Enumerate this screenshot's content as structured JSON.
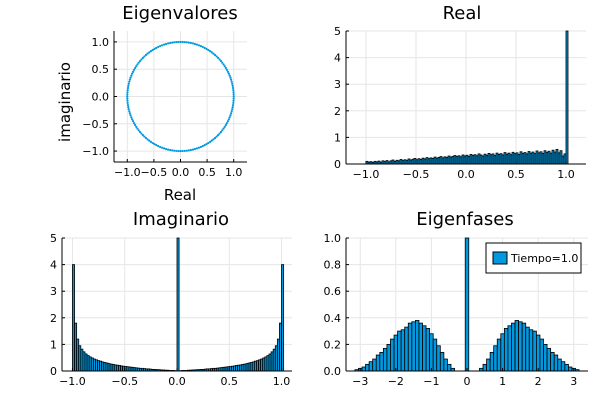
{
  "figure": {
    "background": "#ffffff"
  },
  "colors": {
    "fill": "#0099e0",
    "stroke": "#000000",
    "grid": "#e6e6e6"
  },
  "chart_data": [
    {
      "id": "eig",
      "type": "scatter",
      "title": "Eigenvalores",
      "xlabel": "Real",
      "ylabel": "imaginario",
      "xlim": [
        -1.25,
        1.25
      ],
      "ylim": [
        -1.2,
        1.2
      ],
      "xticks": [
        -1.0,
        -0.5,
        0.0,
        0.5,
        1.0
      ],
      "xtick_labels": [
        "−1.0",
        "−0.5",
        "0.0",
        "0.5",
        "1.0"
      ],
      "yticks": [
        -1.0,
        -0.5,
        0.0,
        0.5,
        1.0
      ],
      "ytick_labels": [
        "−1.0",
        "−0.5",
        "0.0",
        "0.5",
        "1.0"
      ],
      "grid": true,
      "legend": "none",
      "shape": "unit circle",
      "radius": 1.0,
      "n_points": 160
    },
    {
      "id": "real",
      "type": "bar",
      "title": "Real",
      "xlabel": "",
      "ylabel": "",
      "xlim": [
        -1.2,
        1.2
      ],
      "ylim": [
        0,
        5
      ],
      "xticks": [
        -1.0,
        -0.5,
        0.0,
        0.5,
        1.0
      ],
      "xtick_labels": [
        "−1.0",
        "−0.5",
        "0.0",
        "0.5",
        "1.0"
      ],
      "yticks": [
        0,
        1,
        2,
        3,
        4,
        5
      ],
      "ytick_labels": [
        "0",
        "1",
        "2",
        "3",
        "4",
        "5"
      ],
      "grid": true,
      "legend": "none",
      "bin_start": -1.0,
      "bin_width": 0.02,
      "values": [
        0.1,
        0.07,
        0.09,
        0.06,
        0.1,
        0.08,
        0.11,
        0.07,
        0.12,
        0.09,
        0.13,
        0.08,
        0.12,
        0.15,
        0.1,
        0.14,
        0.12,
        0.17,
        0.13,
        0.16,
        0.14,
        0.19,
        0.15,
        0.18,
        0.21,
        0.16,
        0.2,
        0.17,
        0.22,
        0.19,
        0.24,
        0.2,
        0.23,
        0.21,
        0.26,
        0.22,
        0.25,
        0.28,
        0.23,
        0.27,
        0.25,
        0.3,
        0.26,
        0.29,
        0.32,
        0.28,
        0.31,
        0.27,
        0.34,
        0.3,
        0.33,
        0.29,
        0.36,
        0.32,
        0.35,
        0.31,
        0.38,
        0.34,
        0.3,
        0.37,
        0.33,
        0.4,
        0.35,
        0.38,
        0.32,
        0.41,
        0.36,
        0.39,
        0.34,
        0.43,
        0.37,
        0.41,
        0.35,
        0.44,
        0.39,
        0.42,
        0.36,
        0.46,
        0.4,
        0.43,
        0.38,
        0.47,
        0.41,
        0.45,
        0.39,
        0.49,
        0.42,
        0.46,
        0.4,
        0.5,
        0.44,
        0.48,
        0.41,
        0.52,
        0.45,
        0.55,
        0.42,
        0.5,
        0.3,
        0.38,
        5.0
      ]
    },
    {
      "id": "imag",
      "type": "bar",
      "title": "Imaginario",
      "xlabel": "",
      "ylabel": "",
      "xlim": [
        -1.1,
        1.1
      ],
      "ylim": [
        0,
        5
      ],
      "xticks": [
        -1.0,
        -0.5,
        0.0,
        0.5,
        1.0
      ],
      "xtick_labels": [
        "−1.0",
        "−0.5",
        "0.0",
        "0.5",
        "1.0"
      ],
      "yticks": [
        0,
        1,
        2,
        3,
        4,
        5
      ],
      "ytick_labels": [
        "0",
        "1",
        "2",
        "3",
        "4",
        "5"
      ],
      "grid": true,
      "legend": "none",
      "bin_start": -1.0,
      "bin_width": 0.02,
      "values": [
        4.0,
        1.8,
        1.2,
        0.95,
        0.82,
        0.72,
        0.64,
        0.58,
        0.53,
        0.49,
        0.45,
        0.42,
        0.39,
        0.37,
        0.34,
        0.32,
        0.3,
        0.28,
        0.26,
        0.25,
        0.23,
        0.22,
        0.21,
        0.19,
        0.18,
        0.17,
        0.16,
        0.15,
        0.14,
        0.13,
        0.12,
        0.11,
        0.1,
        0.1,
        0.09,
        0.08,
        0.08,
        0.07,
        0.06,
        0.06,
        0.05,
        0.05,
        0.04,
        0.04,
        0.03,
        0.03,
        0.02,
        0.02,
        0.02,
        0.01,
        5.0,
        0.01,
        0.02,
        0.02,
        0.02,
        0.03,
        0.03,
        0.04,
        0.04,
        0.05,
        0.05,
        0.06,
        0.06,
        0.07,
        0.08,
        0.08,
        0.09,
        0.1,
        0.1,
        0.11,
        0.12,
        0.13,
        0.14,
        0.15,
        0.16,
        0.17,
        0.18,
        0.19,
        0.21,
        0.22,
        0.23,
        0.25,
        0.26,
        0.28,
        0.3,
        0.32,
        0.34,
        0.37,
        0.39,
        0.42,
        0.45,
        0.49,
        0.53,
        0.58,
        0.64,
        0.72,
        0.82,
        0.95,
        1.2,
        1.8,
        4.0
      ]
    },
    {
      "id": "phase",
      "type": "bar",
      "title": "Eigenfases",
      "xlabel": "",
      "ylabel": "",
      "xlim": [
        -3.4,
        3.4
      ],
      "ylim": [
        0,
        1.0
      ],
      "xticks": [
        -3,
        -2,
        -1,
        0,
        1,
        2,
        3
      ],
      "xtick_labels": [
        "−3",
        "−2",
        "−1",
        "0",
        "1",
        "2",
        "3"
      ],
      "yticks": [
        0,
        0.2,
        0.4,
        0.6,
        0.8,
        1.0
      ],
      "ytick_labels": [
        "0.0",
        "0.2",
        "0.4",
        "0.6",
        "0.8",
        "1.0"
      ],
      "grid": true,
      "legend": "top-right",
      "series": [
        {
          "name": "Tiempo=1.0"
        }
      ],
      "bin_start": -3.15,
      "bin_width": 0.1,
      "values": [
        0.01,
        0.02,
        0.03,
        0.05,
        0.07,
        0.09,
        0.12,
        0.14,
        0.17,
        0.2,
        0.24,
        0.27,
        0.3,
        0.31,
        0.33,
        0.36,
        0.37,
        0.38,
        0.36,
        0.34,
        0.32,
        0.28,
        0.24,
        0.19,
        0.14,
        0.09,
        0.05,
        0.02,
        0.0,
        0.0,
        0.0,
        1.0,
        0.0,
        0.0,
        0.0,
        0.02,
        0.05,
        0.09,
        0.14,
        0.19,
        0.24,
        0.28,
        0.32,
        0.34,
        0.36,
        0.38,
        0.37,
        0.36,
        0.33,
        0.31,
        0.3,
        0.27,
        0.24,
        0.2,
        0.17,
        0.14,
        0.12,
        0.09,
        0.07,
        0.05,
        0.03,
        0.02,
        0.01
      ]
    }
  ]
}
